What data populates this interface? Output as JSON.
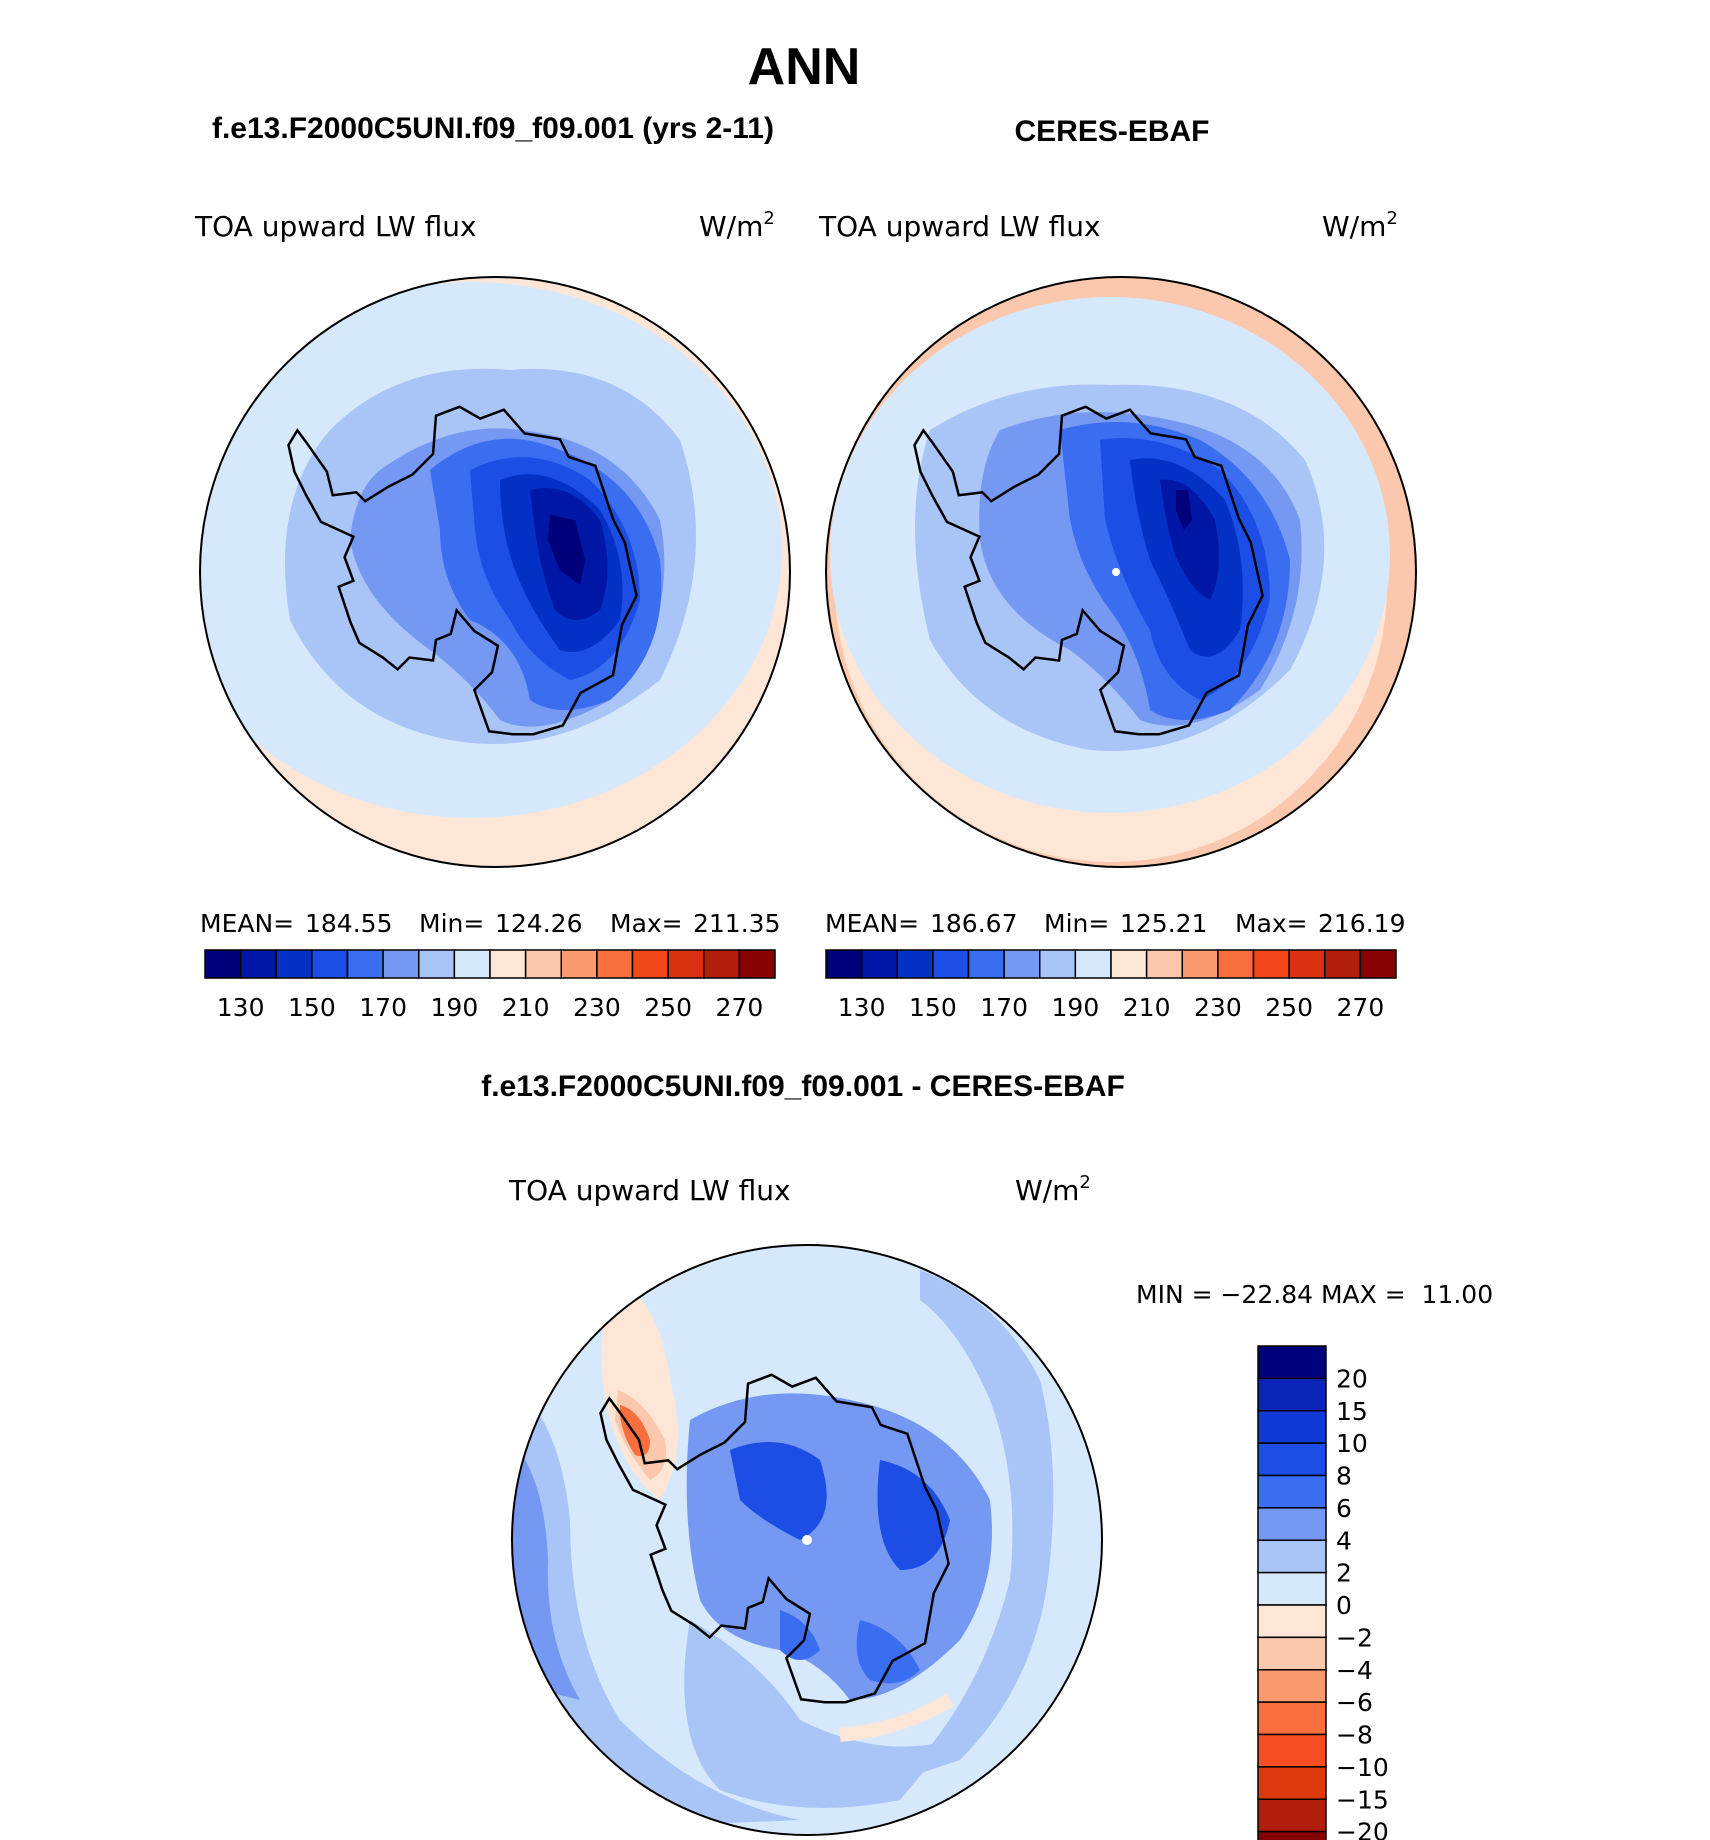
{
  "page": {
    "title": "ANN",
    "panel_left_title": "f.e13.F2000C5UNI.f09_f09.001 (yrs 2-11)",
    "panel_right_title": "CERES-EBAF",
    "diff_title": "f.e13.F2000C5UNI.f09_f09.001 - CERES-EBAF"
  },
  "panels": {
    "left": {
      "variable": "TOA upward LW flux",
      "units": "W/m",
      "units_sup": "2",
      "stats": {
        "mean_label": "MEAN=",
        "mean": "184.55",
        "min_label": "Min=",
        "min": "124.26",
        "max_label": "Max=",
        "max": "211.35"
      }
    },
    "right": {
      "variable": "TOA upward LW flux",
      "units": "W/m",
      "units_sup": "2",
      "stats": {
        "mean_label": "MEAN=",
        "mean": "186.67",
        "min_label": "Min=",
        "min": "125.21",
        "max_label": "Max=",
        "max": "216.19"
      }
    },
    "diff": {
      "variable": "TOA upward LW flux",
      "units": "W/m",
      "units_sup": "2",
      "minmax": "MIN = −22.84 MAX =  11.00"
    }
  },
  "colorbar_abs": {
    "colors": [
      "#00007a",
      "#0016a4",
      "#0331c6",
      "#1c4ee6",
      "#3a6df0",
      "#7598f2",
      "#a9c4f6",
      "#d6e8fc",
      "#fde6d6",
      "#fcc8ad",
      "#f99a6e",
      "#f86e3d",
      "#f3471b",
      "#d9300e",
      "#b21e0c",
      "#850000"
    ],
    "labels": [
      "130",
      "150",
      "170",
      "190",
      "210",
      "230",
      "250",
      "270"
    ]
  },
  "colorbar_diff": {
    "colors": [
      "#00007a",
      "#0a25b5",
      "#0f38d4",
      "#1c4ee6",
      "#3a6df0",
      "#7598f2",
      "#a9c4f6",
      "#d6e8fc",
      "#fde6d6",
      "#fcc8ad",
      "#f99a6e",
      "#f86e3d",
      "#f74f23",
      "#dc3a0c",
      "#b21e0c",
      "#850000"
    ],
    "labels": [
      "20",
      "15",
      "10",
      "8",
      "6",
      "4",
      "2",
      "0",
      "−2",
      "−4",
      "−6",
      "−8",
      "−10",
      "−15",
      "−20"
    ]
  }
}
